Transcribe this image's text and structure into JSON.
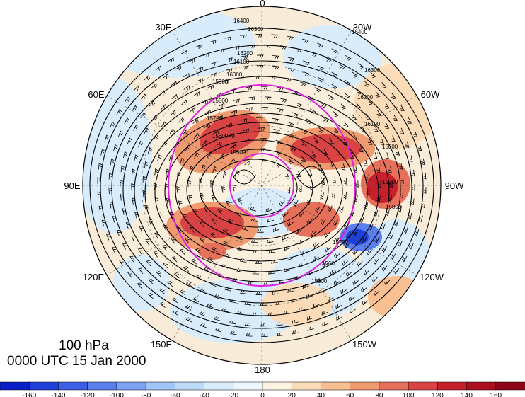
{
  "title": {
    "level": "100 hPa",
    "time": "0000 UTC 15 Jan 2000"
  },
  "longitude_labels": [
    {
      "text": "0",
      "key": "0"
    },
    {
      "text": "30W",
      "key": "30W"
    },
    {
      "text": "60W",
      "key": "60W"
    },
    {
      "text": "90W",
      "key": "90W"
    },
    {
      "text": "120W",
      "key": "120W"
    },
    {
      "text": "150W",
      "key": "150W"
    },
    {
      "text": "180",
      "key": "180"
    },
    {
      "text": "150E",
      "key": "150E"
    },
    {
      "text": "120E",
      "key": "120E"
    },
    {
      "text": "90E",
      "key": "90E"
    },
    {
      "text": "60E",
      "key": "60E"
    },
    {
      "text": "30E",
      "key": "30E"
    }
  ],
  "contour_labels": [
    "16400",
    "16300",
    "16200",
    "16100",
    "16000",
    "15900",
    "15800",
    "15700",
    "15600",
    "15500",
    "16400",
    "16300",
    "16200",
    "16100",
    "16000",
    "15900",
    "15800",
    "15700",
    "15600",
    "15500"
  ],
  "colorbar": {
    "ticks": [
      "-160",
      "-140",
      "-120",
      "-100",
      "-80",
      "-60",
      "-40",
      "-20",
      "0",
      "20",
      "40",
      "60",
      "80",
      "100",
      "120",
      "140",
      "160"
    ],
    "colors": [
      "#0b1fc8",
      "#1f3fd9",
      "#3c5fe6",
      "#5b7fee",
      "#7ea2f2",
      "#a0c4f6",
      "#bcdaf8",
      "#d8ecfb",
      "#eef7fd",
      "#fdf3e2",
      "#fbdcb9",
      "#f7bf92",
      "#f09a70",
      "#e6705a",
      "#d94343",
      "#c7202d",
      "#ac0f1e",
      "#8c0616"
    ]
  },
  "colors": {
    "jet_positive": "#d73030",
    "jet_negative": "#1f3fd9",
    "circle": "#e020e0"
  }
}
